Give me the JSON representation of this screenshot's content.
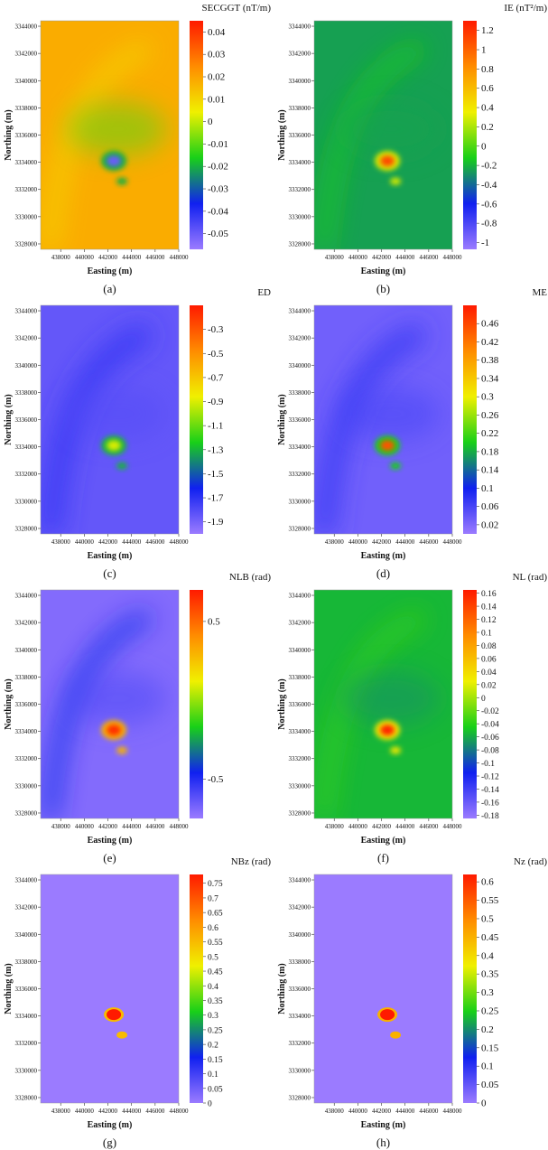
{
  "colormap": [
    "#9b7bff",
    "#1020f0",
    "#18d018",
    "#f0f000",
    "#ff8c00",
    "#ff1a00"
  ],
  "chart_data": [
    {
      "type": "heatmap",
      "caption": "(a)",
      "title": "SECGGT (nT/m)",
      "xlabel": "Easting (m)",
      "ylabel": "Northing (m)",
      "xticks": [
        "438000",
        "440000",
        "442000",
        "444000",
        "446000",
        "448000"
      ],
      "yticks": [
        "3344000",
        "3342000",
        "3340000",
        "3338000",
        "3336000",
        "3334000",
        "3332000",
        "3330000",
        "3328000"
      ],
      "xlim": [
        436300,
        448000
      ],
      "ylim": [
        3327600,
        3344400
      ],
      "cbar_ticks": [
        0.04,
        0.03,
        0.02,
        0.01,
        0,
        -0.01,
        -0.02,
        -0.03,
        -0.04,
        -0.05
      ],
      "cbar_labels": [
        "0.04",
        "0.03",
        "0.02",
        "0.01",
        "0",
        "-0.01",
        "-0.02",
        "-0.03",
        "-0.04",
        "-0.05"
      ],
      "clim": [
        -0.057,
        0.045
      ],
      "background_value": 0.018,
      "anomaly_value": -0.05,
      "secondary_value": -0.02
    },
    {
      "type": "heatmap",
      "caption": "(b)",
      "title": "IE (nT²/m)",
      "xlabel": "Easting (m)",
      "ylabel": "Northing (m)",
      "xticks": [
        "438000",
        "440000",
        "442000",
        "444000",
        "446000",
        "448000"
      ],
      "yticks": [
        "3344000",
        "3342000",
        "3340000",
        "3338000",
        "3336000",
        "3334000",
        "3332000",
        "3330000",
        "3328000"
      ],
      "xlim": [
        436300,
        448000
      ],
      "ylim": [
        3327600,
        3344400
      ],
      "cbar_ticks": [
        1.2,
        1,
        0.8,
        0.6,
        0.4,
        0.2,
        0,
        -0.2,
        -0.4,
        -0.6,
        -0.8,
        -1
      ],
      "cbar_labels": [
        "1.2",
        "1",
        "0.8",
        "0.6",
        "0.4",
        "0.2",
        "0",
        "-0.2",
        "-0.4",
        "-0.6",
        "-0.8",
        "-1"
      ],
      "clim": [
        -1.07,
        1.3
      ],
      "background_value": -0.25,
      "anomaly_value": 1.1,
      "secondary_value": 0.3
    },
    {
      "type": "heatmap",
      "caption": "(c)",
      "title": "ED",
      "xlabel": "Easting (m)",
      "ylabel": "Northing (m)",
      "xticks": [
        "438000",
        "440000",
        "442000",
        "444000",
        "446000",
        "448000"
      ],
      "yticks": [
        "3344000",
        "3342000",
        "3340000",
        "3338000",
        "3336000",
        "3334000",
        "3332000",
        "3330000",
        "3328000"
      ],
      "xlim": [
        436300,
        448000
      ],
      "ylim": [
        3327600,
        3344400
      ],
      "cbar_ticks": [
        -0.3,
        -0.5,
        -0.7,
        -0.9,
        -1.1,
        -1.3,
        -1.5,
        -1.7,
        -1.9
      ],
      "cbar_labels": [
        "-0.3",
        "-0.5",
        "-0.7",
        "-0.9",
        "-1.1",
        "-1.3",
        "-1.5",
        "-1.7",
        "-1.9"
      ],
      "clim": [
        -2.0,
        -0.1
      ],
      "background_value": -1.85,
      "anomaly_value": -0.9,
      "secondary_value": -1.3
    },
    {
      "type": "heatmap",
      "caption": "(d)",
      "title": "ME",
      "xlabel": "Easting (m)",
      "ylabel": "Northing (m)",
      "xticks": [
        "438000",
        "440000",
        "442000",
        "444000",
        "446000",
        "448000"
      ],
      "yticks": [
        "3344000",
        "3342000",
        "3340000",
        "3338000",
        "3336000",
        "3334000",
        "3332000",
        "3330000",
        "3328000"
      ],
      "xlim": [
        436300,
        448000
      ],
      "ylim": [
        3327600,
        3344400
      ],
      "cbar_ticks": [
        0.46,
        0.42,
        0.38,
        0.34,
        0.3,
        0.26,
        0.22,
        0.18,
        0.14,
        0.1,
        0.06,
        0.02
      ],
      "cbar_labels": [
        "0.46",
        "0.42",
        "0.38",
        "0.34",
        "0.3",
        "0.26",
        "0.22",
        "0.18",
        "0.14",
        "0.1",
        "0.06",
        "0.02"
      ],
      "clim": [
        0,
        0.5
      ],
      "background_value": 0.03,
      "anomaly_value": 0.45,
      "secondary_value": 0.2
    },
    {
      "type": "heatmap",
      "caption": "(e)",
      "title": "NLB (rad)",
      "xlabel": "Easting (m)",
      "ylabel": "Northing (m)",
      "xticks": [
        "438000",
        "440000",
        "442000",
        "444000",
        "446000",
        "448000"
      ],
      "yticks": [
        "3344000",
        "3342000",
        "3340000",
        "3338000",
        "3336000",
        "3334000",
        "3332000",
        "3330000",
        "3328000"
      ],
      "xlim": [
        436300,
        448000
      ],
      "ylim": [
        3327600,
        3344400
      ],
      "cbar_ticks": [
        0.5,
        -0.5
      ],
      "cbar_labels": [
        "0.5",
        "-0.5"
      ],
      "clim": [
        -0.75,
        0.7
      ],
      "background_value": -0.7,
      "anomaly_value": 0.65,
      "secondary_value": 0.3
    },
    {
      "type": "heatmap",
      "caption": "(f)",
      "title": "NL (rad)",
      "xlabel": "Easting (m)",
      "ylabel": "Northing (m)",
      "xticks": [
        "438000",
        "440000",
        "442000",
        "444000",
        "446000",
        "448000"
      ],
      "yticks": [
        "3344000",
        "3342000",
        "3340000",
        "3338000",
        "3336000",
        "3334000",
        "3332000",
        "3330000",
        "3328000"
      ],
      "xlim": [
        436300,
        448000
      ],
      "ylim": [
        3327600,
        3344400
      ],
      "cbar_ticks": [
        0.16,
        0.14,
        0.12,
        0.1,
        0.08,
        0.06,
        0.04,
        0.02,
        0,
        -0.02,
        -0.04,
        -0.06,
        -0.08,
        -0.1,
        -0.12,
        -0.14,
        -0.16,
        -0.18
      ],
      "cbar_labels": [
        "0.16",
        "0.14",
        "0.12",
        "0.1",
        "0.08",
        "0.06",
        "0.04",
        "0.02",
        "0",
        "-0.02",
        "-0.04",
        "-0.06",
        "-0.08",
        "-0.1",
        "-0.12",
        "-0.14",
        "-0.16",
        "-0.18"
      ],
      "clim": [
        -0.185,
        0.165
      ],
      "background_value": -0.055,
      "anomaly_value": 0.16,
      "secondary_value": 0.03
    },
    {
      "type": "heatmap",
      "caption": "(g)",
      "title": "NBz (rad)",
      "xlabel": "Easting (m)",
      "ylabel": "Northing (m)",
      "xticks": [
        "438000",
        "440000",
        "442000",
        "444000",
        "446000",
        "448000"
      ],
      "yticks": [
        "3344000",
        "3342000",
        "3340000",
        "3338000",
        "3336000",
        "3334000",
        "3332000",
        "3330000",
        "3328000"
      ],
      "xlim": [
        436300,
        448000
      ],
      "ylim": [
        3327600,
        3344400
      ],
      "cbar_ticks": [
        0.75,
        0.7,
        0.65,
        0.6,
        0.55,
        0.5,
        0.45,
        0.4,
        0.35,
        0.3,
        0.25,
        0.2,
        0.15,
        0.1,
        0.05,
        0
      ],
      "cbar_labels": [
        "0.75",
        "0.7",
        "0.65",
        "0.6",
        "0.55",
        "0.5",
        "0.45",
        "0.4",
        "0.35",
        "0.3",
        "0.25",
        "0.2",
        "0.15",
        "0.1",
        "0.05",
        "0"
      ],
      "clim": [
        0,
        0.78
      ],
      "background_value": 0,
      "anomaly_value": 0.78,
      "secondary_value": 0.55
    },
    {
      "type": "heatmap",
      "caption": "(h)",
      "title": "Nz (rad)",
      "xlabel": "Easting (m)",
      "ylabel": "Northing (m)",
      "xticks": [
        "438000",
        "440000",
        "442000",
        "444000",
        "446000",
        "448000"
      ],
      "yticks": [
        "3344000",
        "3342000",
        "3340000",
        "3338000",
        "3336000",
        "3334000",
        "3332000",
        "3330000",
        "3328000"
      ],
      "xlim": [
        436300,
        448000
      ],
      "ylim": [
        3327600,
        3344400
      ],
      "cbar_ticks": [
        0.6,
        0.55,
        0.5,
        0.45,
        0.4,
        0.35,
        0.3,
        0.25,
        0.2,
        0.15,
        0.1,
        0.05,
        0
      ],
      "cbar_labels": [
        "0.6",
        "0.55",
        "0.5",
        "0.45",
        "0.4",
        "0.35",
        "0.3",
        "0.25",
        "0.2",
        "0.15",
        "0.1",
        "0.05",
        "0"
      ],
      "clim": [
        0,
        0.62
      ],
      "background_value": 0,
      "anomaly_value": 0.62,
      "secondary_value": 0.45
    }
  ]
}
